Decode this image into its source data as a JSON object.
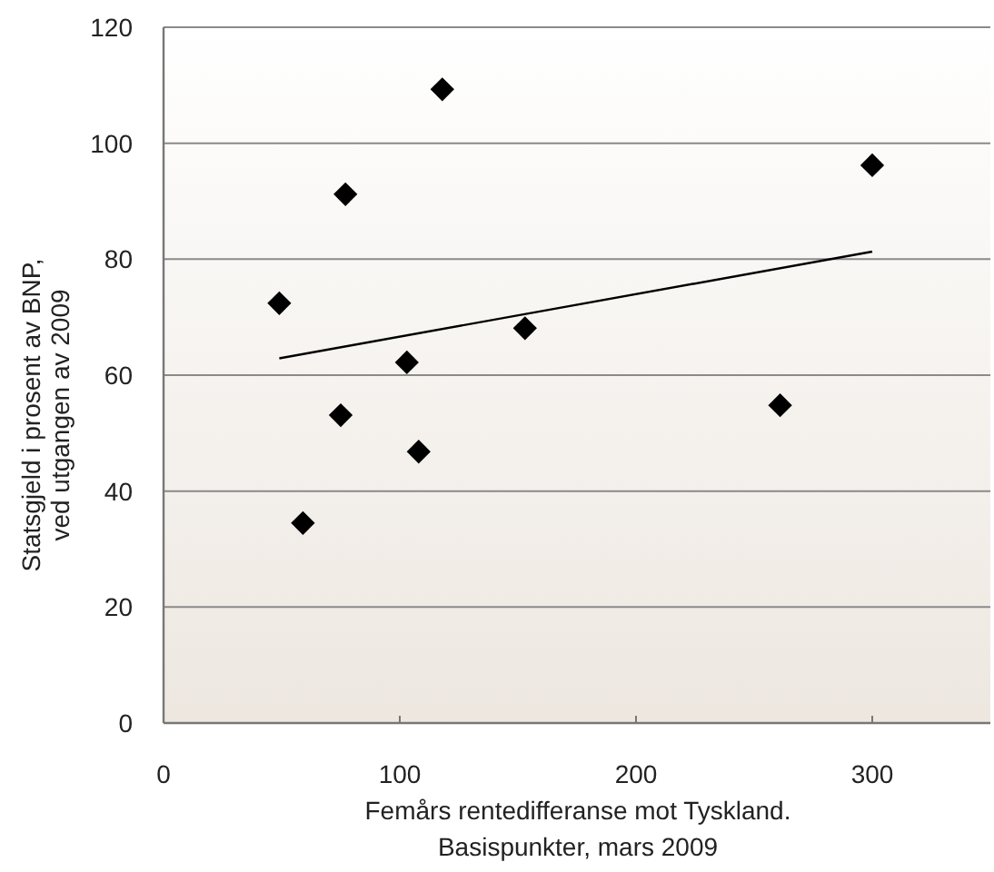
{
  "chart_data": {
    "type": "scatter",
    "xlabel": "Femårs rentedifferanse mot Tyskland.\nBasispunkter, mars 2009",
    "ylabel": "Statsgjeld i prosent av BNP,\nved utgangen av 2009",
    "xlim": [
      0,
      350
    ],
    "ylim": [
      0,
      120
    ],
    "xticks": [
      0,
      100,
      200,
      300
    ],
    "yticks": [
      0,
      20,
      40,
      60,
      80,
      100,
      120
    ],
    "grid": "y",
    "marker": "diamond",
    "series": [
      {
        "color": "#000000",
        "x": [
          49,
          59,
          75,
          77,
          103,
          108,
          118,
          153,
          261,
          300
        ],
        "values": [
          72.4,
          34.5,
          53.1,
          91.2,
          62.2,
          46.8,
          109.3,
          68.1,
          54.8,
          96.2
        ]
      },
      {
        "type": "line",
        "color": "#000000",
        "marker": "none",
        "line_style": "solid",
        "x": [
          49,
          300
        ],
        "values": [
          62.9,
          81.3
        ]
      }
    ]
  }
}
